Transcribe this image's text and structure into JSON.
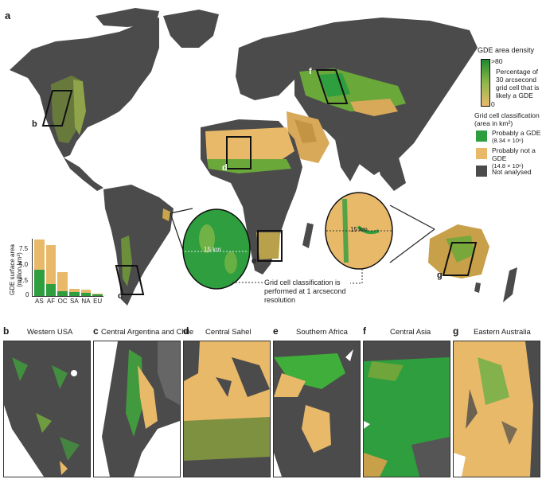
{
  "figure": {
    "panel_a_label": "a",
    "legend": {
      "density_title": "GDE area density",
      "density_max": ">80",
      "density_min": "0",
      "density_desc": [
        "Percentage of",
        "30 arcsecond",
        "grid cell that is",
        "likely a GDE"
      ],
      "classification_title": [
        "Grid cell classification",
        "(area in km²)"
      ],
      "items": [
        {
          "label": "Probably a GDE",
          "value": "(8.34 × 10⁶)",
          "color": "#2e9e3e"
        },
        {
          "label": "Probably not a GDE",
          "value": "(14.8 × 10⁶)",
          "color": "#e9b96a"
        },
        {
          "label": "Not analysed",
          "value": "",
          "color": "#4b4b4b"
        }
      ],
      "gradient_top": "#1f8a2e",
      "gradient_bottom": "#e9b96a"
    },
    "map_markers": [
      {
        "label": "b"
      },
      {
        "label": "c"
      },
      {
        "label": "d"
      },
      {
        "label": "e"
      },
      {
        "label": "f"
      },
      {
        "label": "g"
      }
    ],
    "zoom_circles": [
      {
        "scale_label": "15 km"
      },
      {
        "scale_label": "15 km"
      }
    ],
    "annotation": [
      "Grid cell classification is",
      "performed at 1 arcsecond",
      "resolution"
    ],
    "subpanels": [
      {
        "letter": "b",
        "title": "Western USA"
      },
      {
        "letter": "c",
        "title": "Central Argentina and Chile"
      },
      {
        "letter": "d",
        "title": "Central Sahel"
      },
      {
        "letter": "e",
        "title": "Southern Africa"
      },
      {
        "letter": "f",
        "title": "Central Asia"
      },
      {
        "letter": "g",
        "title": "Eastern Australia"
      }
    ],
    "colors": {
      "gde_green": "#2e9e3e",
      "not_gde_tan": "#e9b96a",
      "not_analysed_gray": "#4b4b4b",
      "ocean_white": "#ffffff"
    }
  },
  "chart_data": {
    "type": "bar",
    "stacked": true,
    "title": "",
    "xlabel": "",
    "ylabel": "GDE surface area (million km²)",
    "ylim": [
      0,
      9
    ],
    "yticks": [
      "0",
      "2.5",
      "5.0",
      "7.5"
    ],
    "categories": [
      "AS",
      "AF",
      "OC",
      "SA",
      "NA",
      "EU"
    ],
    "series": [
      {
        "name": "Probably a GDE",
        "color": "#2e9e3e",
        "values": [
          4.1,
          1.9,
          0.7,
          0.6,
          0.5,
          0.25
        ]
      },
      {
        "name": "Probably not a GDE",
        "color": "#e9b96a",
        "values": [
          4.8,
          6.1,
          3.1,
          0.5,
          0.5,
          0.15
        ]
      }
    ],
    "totals": [
      8.9,
      8.0,
      3.8,
      1.1,
      1.0,
      0.4
    ],
    "grid": false,
    "legend_position": "none"
  }
}
